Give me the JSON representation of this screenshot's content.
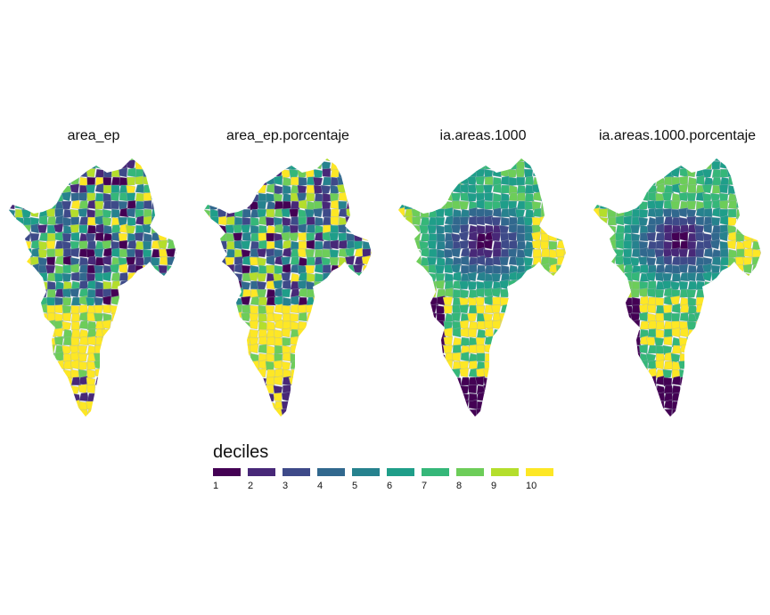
{
  "panels": [
    {
      "title": "area_ep"
    },
    {
      "title": "area_ep.porcentaje"
    },
    {
      "title": "ia.areas.1000"
    },
    {
      "title": "ia.areas.1000.porcentaje"
    }
  ],
  "legend": {
    "title": "deciles",
    "items": [
      {
        "label": "1",
        "color": "#440154"
      },
      {
        "label": "2",
        "color": "#482878"
      },
      {
        "label": "3",
        "color": "#3E4A89"
      },
      {
        "label": "4",
        "color": "#31688E"
      },
      {
        "label": "5",
        "color": "#26828E"
      },
      {
        "label": "6",
        "color": "#1F9E89"
      },
      {
        "label": "7",
        "color": "#35B779"
      },
      {
        "label": "8",
        "color": "#6DCD59"
      },
      {
        "label": "9",
        "color": "#B4DE2C"
      },
      {
        "label": "10",
        "color": "#FDE725"
      }
    ]
  }
}
